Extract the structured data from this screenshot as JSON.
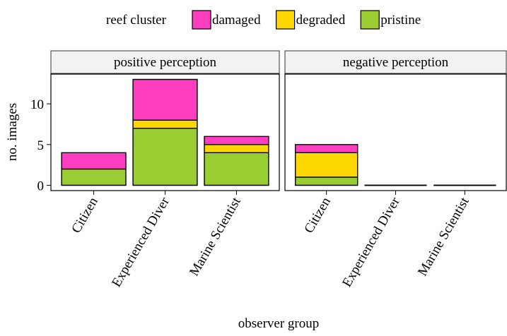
{
  "figure": {
    "legend_title": "reef cluster",
    "xlabel": "observer group",
    "ylabel": "no. images"
  },
  "chart_data": [
    {
      "type": "bar",
      "stacked": true,
      "title": "positive perception",
      "categories": [
        "Citizen",
        "Experienced Diver",
        "Marine Scientist"
      ],
      "series": [
        {
          "name": "pristine",
          "color": "#9acd32",
          "values": [
            2,
            7,
            4
          ]
        },
        {
          "name": "degraded",
          "color": "#ffd700",
          "values": [
            0,
            1,
            1
          ]
        },
        {
          "name": "damaged",
          "color": "#ff3ec0",
          "values": [
            2,
            5,
            1
          ]
        }
      ],
      "ylim": [
        -0.65,
        13.65
      ],
      "yticks": [
        0,
        5,
        10
      ]
    },
    {
      "type": "bar",
      "stacked": true,
      "title": "negative perception",
      "categories": [
        "Citizen",
        "Experienced Diver",
        "Marine Scientist"
      ],
      "series": [
        {
          "name": "pristine",
          "color": "#9acd32",
          "values": [
            1,
            0,
            0
          ]
        },
        {
          "name": "degraded",
          "color": "#ffd700",
          "values": [
            3,
            0,
            0
          ]
        },
        {
          "name": "damaged",
          "color": "#ff3ec0",
          "values": [
            1,
            0,
            0
          ]
        }
      ],
      "ylim": [
        -0.65,
        13.65
      ]
    }
  ]
}
